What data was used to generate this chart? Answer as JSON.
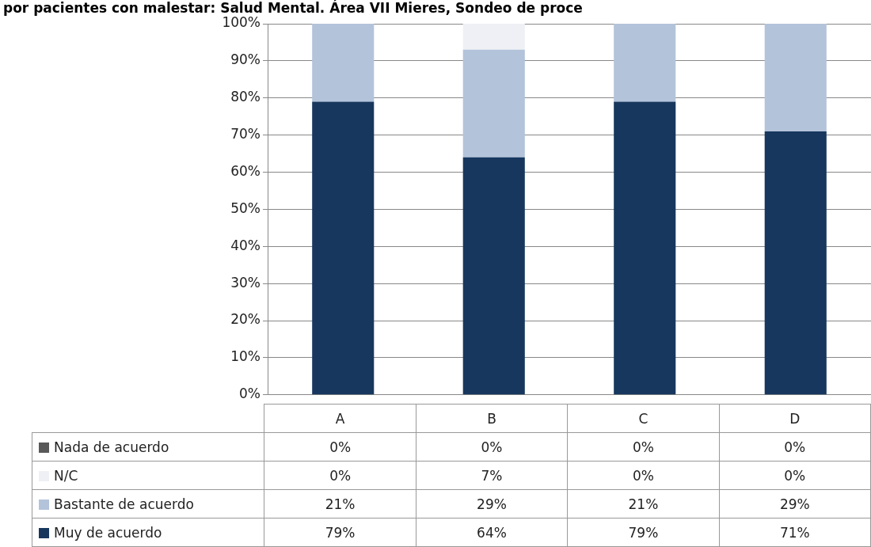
{
  "chart_data": {
    "type": "bar",
    "title": "por pacientes con malestar: Salud Mental. Área VII Mieres, Sondeo de proce",
    "categories": [
      "A",
      "B",
      "C",
      "D"
    ],
    "stacked": true,
    "grid": "y",
    "legend": "bottom left",
    "series": [
      {
        "name": "Muy de acuerdo",
        "color": "#17375e",
        "values": [
          79,
          64,
          79,
          71
        ],
        "value_labels": [
          "79%",
          "64%",
          "79%",
          "71%"
        ]
      },
      {
        "name": "Bastante de acuerdo",
        "color": "#b3c3da",
        "values": [
          21,
          29,
          21,
          29
        ],
        "value_labels": [
          "21%",
          "29%",
          "21%",
          "29%"
        ]
      },
      {
        "name": "N/C",
        "color": "#eef0f5",
        "values": [
          0,
          7,
          0,
          0
        ],
        "value_labels": [
          "0%",
          "7%",
          "0%",
          "0%"
        ]
      },
      {
        "name": "Nada de acuerdo",
        "color": "#595959",
        "values": [
          0,
          0,
          0,
          0
        ],
        "value_labels": [
          "0%",
          "0%",
          "0%",
          "0%"
        ]
      }
    ],
    "ylim": [
      0,
      100
    ],
    "yticks": [
      {
        "value": 0,
        "label": "0%"
      },
      {
        "value": 10,
        "label": "10%"
      },
      {
        "value": 20,
        "label": "20%"
      },
      {
        "value": 30,
        "label": "30%"
      },
      {
        "value": 40,
        "label": "40%"
      },
      {
        "value": 50,
        "label": "50%"
      },
      {
        "value": 60,
        "label": "60%"
      },
      {
        "value": 70,
        "label": "70%"
      },
      {
        "value": 80,
        "label": "80%"
      },
      {
        "value": 90,
        "label": "90%"
      },
      {
        "value": 100,
        "label": "100%"
      }
    ]
  }
}
